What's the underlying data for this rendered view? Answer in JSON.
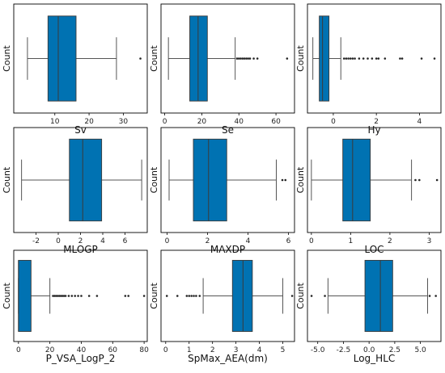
{
  "colors": {
    "box_fill": "#0072b2",
    "box_edge": "#3a3a3a",
    "line": "#555555",
    "flier": "#222222"
  },
  "chart_data": [
    {
      "type": "box",
      "xlabel": "Sv",
      "ylabel": "Count",
      "xlim": [
        -2,
        37
      ],
      "ticks": [
        10,
        20,
        30
      ],
      "whisker_low": 2,
      "q1": 8,
      "median": 11,
      "q3": 16.2,
      "whisker_high": 28,
      "fliers": [
        35
      ]
    },
    {
      "type": "box",
      "xlabel": "Se",
      "ylabel": "Count",
      "xlim": [
        -2,
        70
      ],
      "ticks": [
        0,
        20,
        40,
        60
      ],
      "whisker_low": 2,
      "q1": 13.5,
      "median": 18,
      "q3": 23,
      "whisker_high": 38,
      "fliers": [
        39,
        40,
        41,
        42,
        43,
        44,
        45,
        46,
        48,
        50,
        66
      ]
    },
    {
      "type": "box",
      "xlabel": "Hy",
      "ylabel": "Count",
      "xlim": [
        -1.2,
        5
      ],
      "ticks": [
        0,
        2,
        4
      ],
      "whisker_low": -0.95,
      "q1": -0.65,
      "median": -0.5,
      "q3": -0.2,
      "whisker_high": 0.35,
      "fliers": [
        0.5,
        0.6,
        0.7,
        0.8,
        0.9,
        1.0,
        1.2,
        1.4,
        1.6,
        1.8,
        2.0,
        2.1,
        2.4,
        3.1,
        3.2,
        4.1,
        4.7
      ]
    },
    {
      "type": "box",
      "xlabel": "MLOGP",
      "ylabel": "Count",
      "xlim": [
        -4,
        8
      ],
      "ticks": [
        -2,
        0,
        2,
        4,
        6
      ],
      "whisker_low": -3.3,
      "q1": 1.0,
      "median": 2.2,
      "q3": 3.9,
      "whisker_high": 7.5,
      "fliers": []
    },
    {
      "type": "box",
      "xlabel": "MAXDP",
      "ylabel": "Count",
      "xlim": [
        -0.3,
        6.3
      ],
      "ticks": [
        0,
        2,
        4,
        6
      ],
      "whisker_low": 0.1,
      "q1": 1.3,
      "median": 2.05,
      "q3": 2.95,
      "whisker_high": 5.4,
      "fliers": [
        5.7,
        5.85
      ]
    },
    {
      "type": "box",
      "xlabel": "LOC",
      "ylabel": "Count",
      "xlim": [
        -0.1,
        3.3
      ],
      "ticks": [
        0,
        1,
        2,
        3
      ],
      "whisker_low": 0,
      "q1": 0.8,
      "median": 1.05,
      "q3": 1.5,
      "whisker_high": 2.55,
      "fliers": [
        2.65,
        2.75,
        3.2
      ]
    },
    {
      "type": "box",
      "xlabel": "P_VSA_LogP_2",
      "ylabel": "Count",
      "xlim": [
        -3,
        82
      ],
      "ticks": [
        0,
        20,
        40,
        60,
        80
      ],
      "whisker_low": 0,
      "q1": 0,
      "median": 0,
      "q3": 8,
      "whisker_high": 20,
      "fliers": [
        22,
        23,
        24,
        25,
        26,
        27,
        28,
        29,
        30,
        32,
        34,
        36,
        38,
        40,
        45,
        50,
        68,
        70,
        80
      ]
    },
    {
      "type": "box",
      "xlabel": "SpMax_AEA(dm)",
      "ylabel": "Count",
      "xlim": [
        -0.2,
        5.5
      ],
      "ticks": [
        0,
        1,
        2,
        3,
        4,
        5
      ],
      "whisker_low": 1.6,
      "q1": 2.85,
      "median": 3.3,
      "q3": 3.7,
      "whisker_high": 5.0,
      "fliers": [
        0.05,
        0.5,
        0.9,
        1.0,
        1.1,
        1.2,
        1.3,
        1.45,
        5.4
      ]
    },
    {
      "type": "box",
      "xlabel": "Log_HLC",
      "ylabel": "Count",
      "xlim": [
        -6,
        7
      ],
      "ticks": [
        -5.0,
        -2.5,
        0.0,
        2.5,
        5.0
      ],
      "tick_labels": [
        "-5.0",
        "-2.5",
        "0.0",
        "2.5",
        "5.0"
      ],
      "whisker_low": -4.0,
      "q1": -0.4,
      "median": 1.1,
      "q3": 2.3,
      "whisker_high": 5.7,
      "fliers": [
        -5.6,
        -4.3,
        5.9,
        6.5
      ]
    }
  ]
}
